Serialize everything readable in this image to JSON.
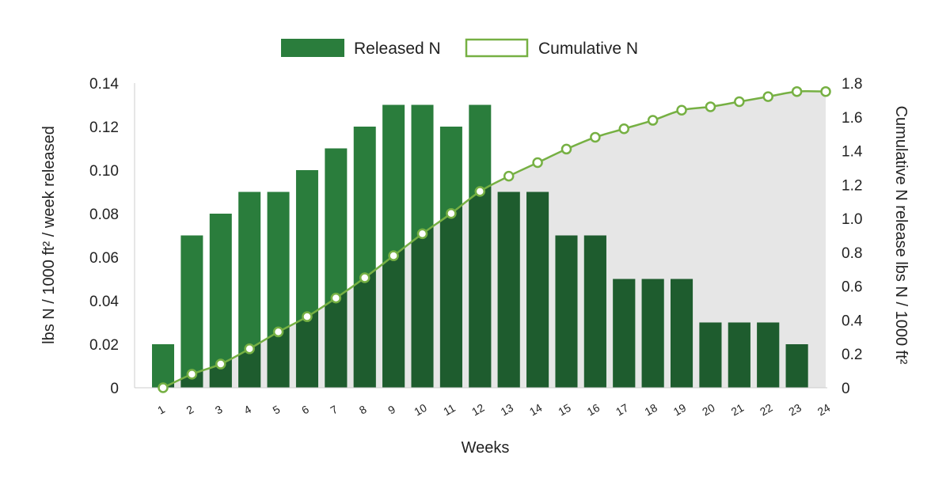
{
  "chart_data": {
    "type": "bar",
    "xlabel": "Weeks",
    "ylabel": "lbs N / 1000 ft² / week released",
    "y2label": "Cumulative N release lbs N / 1000 ft²",
    "categories": [
      "1",
      "2",
      "3",
      "4",
      "5",
      "6",
      "7",
      "8",
      "9",
      "10",
      "11",
      "12",
      "13",
      "14",
      "15",
      "16",
      "17",
      "18",
      "19",
      "20",
      "21",
      "22",
      "23",
      "24"
    ],
    "ylim": [
      0,
      0.14
    ],
    "y2lim": [
      0,
      1.8
    ],
    "yticks": [
      "0",
      "0.02",
      "0.04",
      "0.06",
      "0.08",
      "0.10",
      "0.12",
      "0.14"
    ],
    "y2ticks": [
      "0",
      "0.2",
      "0.4",
      "0.6",
      "0.8",
      "1.0",
      "1.2",
      "1.4",
      "1.6",
      "1.8"
    ],
    "legend_position": "top-center",
    "grid": false,
    "series": [
      {
        "name": "Released N",
        "type": "bar",
        "axis": "left",
        "values": [
          0.02,
          0.07,
          0.08,
          0.09,
          0.09,
          0.1,
          0.11,
          0.12,
          0.13,
          0.13,
          0.12,
          0.13,
          0.09,
          0.09,
          0.07,
          0.07,
          0.05,
          0.05,
          0.05,
          0.03,
          0.03,
          0.03,
          0.02,
          null
        ]
      },
      {
        "name": "Cumulative N",
        "type": "area-line",
        "axis": "right",
        "values": [
          0,
          0.08,
          0.14,
          0.23,
          0.33,
          0.42,
          0.53,
          0.65,
          0.78,
          0.91,
          1.03,
          1.16,
          1.25,
          1.33,
          1.41,
          1.48,
          1.53,
          1.58,
          1.64,
          1.66,
          1.69,
          1.72,
          1.75,
          1.75
        ]
      }
    ],
    "colors": {
      "bar": "#2a7d3c",
      "bar_overlap": "#1e5c2e",
      "line": "#76b043",
      "area": "#e6e6e6",
      "marker_fill": "#ffffff"
    }
  }
}
